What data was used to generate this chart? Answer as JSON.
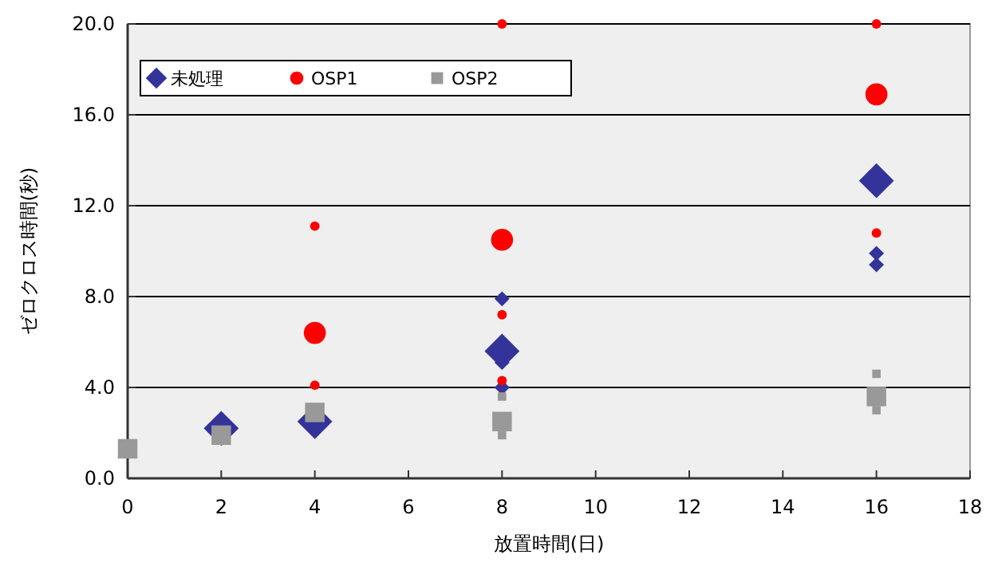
{
  "chart_data": {
    "type": "scatter",
    "xlabel": "放置時間(日)",
    "ylabel": "ゼロクロス時間(秒)",
    "xlim": [
      0,
      18
    ],
    "xticks": [
      0,
      2,
      4,
      6,
      8,
      10,
      12,
      14,
      16,
      18
    ],
    "ylim": [
      0,
      20
    ],
    "yticks": [
      {
        "value": 0,
        "label": "0.0"
      },
      {
        "value": 4,
        "label": "4.0"
      },
      {
        "value": 8,
        "label": "8.0"
      },
      {
        "value": 12,
        "label": "12.0"
      },
      {
        "value": 16,
        "label": "16.0"
      },
      {
        "value": 20,
        "label": "20.0"
      }
    ],
    "grid": "y",
    "legend": "top left",
    "series": [
      {
        "color": "#333399",
        "marker": "diamond",
        "x": [
          8,
          8,
          8,
          16,
          16
        ],
        "values": [
          7.9,
          5.1,
          4.0,
          9.9,
          9.4
        ]
      },
      {
        "color": "#ff0000",
        "marker": "circle",
        "x": [
          4,
          4,
          8,
          8,
          8,
          16,
          16
        ],
        "values": [
          11.1,
          4.1,
          20.0,
          7.2,
          4.3,
          20.0,
          10.8
        ]
      },
      {
        "color": "#999999",
        "marker": "square",
        "x": [
          8,
          8,
          16,
          16
        ],
        "values": [
          3.6,
          1.9,
          4.6,
          3.0
        ]
      },
      {
        "name": "未処理",
        "color": "#333399",
        "marker": "diamond",
        "x": [
          2,
          4,
          8,
          16
        ],
        "values": [
          2.2,
          2.5,
          5.6,
          13.1
        ]
      },
      {
        "name": "OSP1",
        "color": "#ff0000",
        "marker": "circle",
        "x": [
          4,
          8,
          16
        ],
        "values": [
          6.4,
          10.5,
          16.9
        ]
      },
      {
        "name": "OSP2",
        "color": "#999999",
        "marker": "square",
        "x": [
          0,
          2,
          4,
          8,
          16
        ],
        "values": [
          1.3,
          1.9,
          2.9,
          2.5,
          3.6
        ]
      }
    ]
  }
}
